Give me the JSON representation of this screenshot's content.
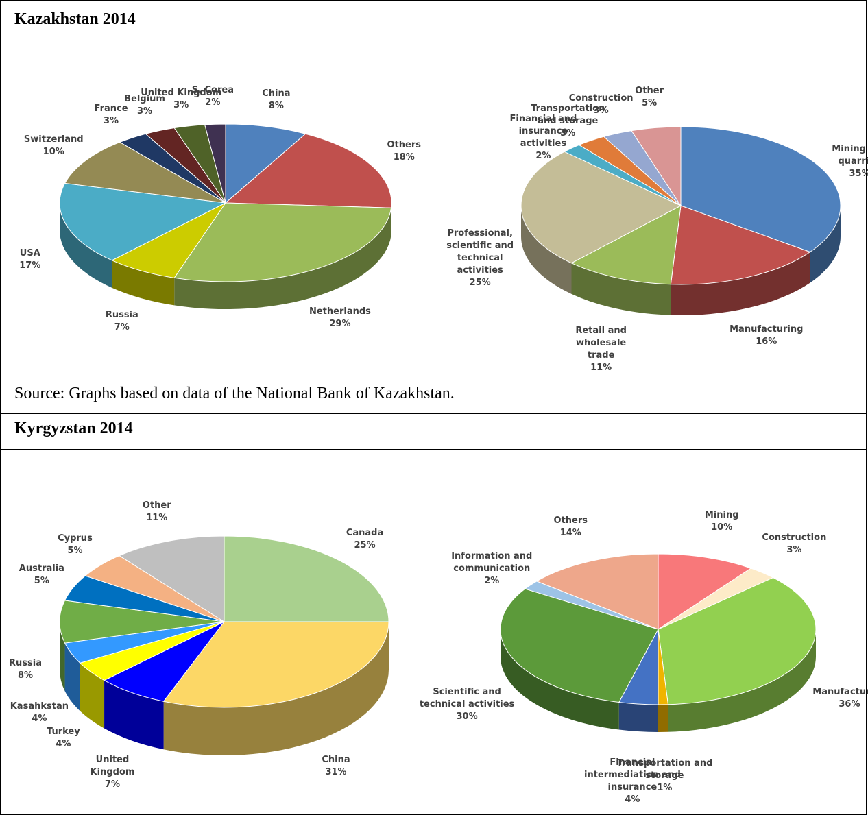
{
  "sections": [
    {
      "title": "Kazakhstan 2014",
      "source": "Source: Graphs based on data of the National Bank of Kazakhstan."
    },
    {
      "title": "Kyrgyzstan 2014"
    }
  ],
  "chart_data": [
    {
      "type": "pie",
      "categories": [
        "China",
        "Others",
        "Netherlands",
        "Russia",
        "USA",
        "Switzerland",
        "France",
        "Belgium",
        "United Kingdom",
        "S. Corea"
      ],
      "values": [
        8,
        18,
        29,
        7,
        17,
        10,
        3,
        3,
        3,
        2
      ],
      "value_labels": [
        "8%",
        "18%",
        "29%",
        "7%",
        "17%",
        "10%",
        "3%",
        "3%",
        "3%",
        "2%"
      ],
      "colors": [
        "#4f81bd",
        "#c0504d",
        "#9bbb59",
        "#cccc00",
        "#4bacc6",
        "#948a54",
        "#1f3864",
        "#632523",
        "#4f6228",
        "#3f3151"
      ]
    },
    {
      "type": "pie",
      "categories": [
        "Mining and quarring",
        "Manufacturing",
        "Retail and wholesale trade",
        "Professional, scientific and technical activities",
        "Financial and insurance activities",
        "Transportation and storage",
        "Construction",
        "Other"
      ],
      "values": [
        35,
        16,
        11,
        25,
        2,
        3,
        3,
        5
      ],
      "value_labels": [
        "35%",
        "16%",
        "11%",
        "25%",
        "2%",
        "3%",
        "3%",
        "5%"
      ],
      "colors": [
        "#4f81bd",
        "#c0504d",
        "#9bbb59",
        "#c4bd97",
        "#4bacc6",
        "#e07b39",
        "#95a7d0",
        "#d99594"
      ]
    },
    {
      "type": "pie",
      "categories": [
        "Canada",
        "China",
        "United Kingdom",
        "Turkey",
        "Kasahkstan",
        "Russia",
        "Australia",
        "Cyprus",
        "Other"
      ],
      "values": [
        25,
        31,
        7,
        4,
        4,
        8,
        5,
        5,
        11
      ],
      "value_labels": [
        "25%",
        "31%",
        "7%",
        "4%",
        "4%",
        "8%",
        "5%",
        "5%",
        "11%"
      ],
      "colors": [
        "#a9d08e",
        "#fcd766",
        "#0000ff",
        "#ffff00",
        "#3399ff",
        "#70ad47",
        "#0070c0",
        "#f4b183",
        "#bfbfbf"
      ]
    },
    {
      "type": "pie",
      "categories": [
        "Mining",
        "Construction",
        "Manufacturing",
        "Transportation and storage",
        "Financial intermediation and insurance",
        "Scientific and technical activities",
        "Information and communication",
        "Others"
      ],
      "values": [
        10,
        3,
        36,
        1,
        4,
        30,
        2,
        14
      ],
      "value_labels": [
        "10%",
        "3%",
        "36%",
        "1%",
        "4%",
        "30%",
        "2%",
        "14%"
      ],
      "colors": [
        "#f8787a",
        "#fdebc8",
        "#92d050",
        "#f0b400",
        "#4472c4",
        "#5c9a3a",
        "#9dc3e6",
        "#eea78b"
      ]
    }
  ]
}
